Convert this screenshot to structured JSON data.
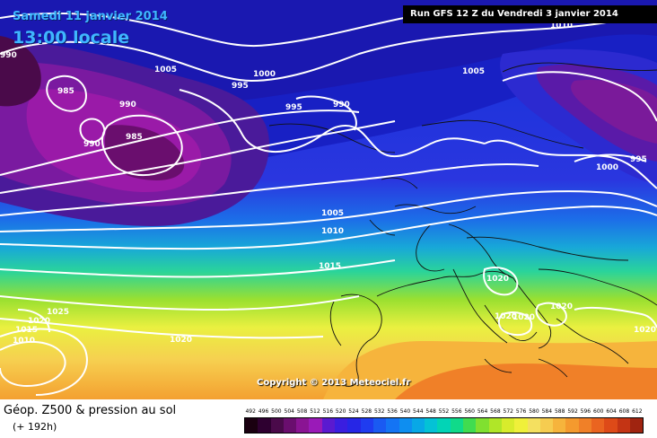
{
  "header": {
    "date": "Samedi 11 janvier 2014",
    "time": "13:00 locale",
    "run": "Run GFS 12 Z du Vendredi 3 janvier 2014"
  },
  "map": {
    "copyright": "Copyright © 2013 Meteociel.fr",
    "isobar_labels": [
      {
        "id": "l990-nw",
        "text": "990"
      },
      {
        "id": "l985-a",
        "text": "985"
      },
      {
        "id": "l1005-a",
        "text": "1005"
      },
      {
        "id": "l1000-a",
        "text": "1000"
      },
      {
        "id": "l995-a",
        "text": "995"
      },
      {
        "id": "l995-b",
        "text": "995"
      },
      {
        "id": "l990-b",
        "text": "990"
      },
      {
        "id": "l990-c",
        "text": "990"
      },
      {
        "id": "l985-b",
        "text": "985"
      },
      {
        "id": "l990-d",
        "text": "990"
      },
      {
        "id": "l1005-b",
        "text": "1005"
      },
      {
        "id": "l1010-top",
        "text": "1010"
      },
      {
        "id": "l995-c",
        "text": "995"
      },
      {
        "id": "l1000-b",
        "text": "1000"
      },
      {
        "id": "l1005-c",
        "text": "1005"
      },
      {
        "id": "l1010-a",
        "text": "1010"
      },
      {
        "id": "l1015-a",
        "text": "1015"
      },
      {
        "id": "l1025",
        "text": "1025"
      },
      {
        "id": "l1020-a",
        "text": "1020"
      },
      {
        "id": "l1015-b",
        "text": "1015"
      },
      {
        "id": "l1010-b",
        "text": "1010"
      },
      {
        "id": "l1020-b",
        "text": "1020"
      },
      {
        "id": "l1020-c",
        "text": "1020"
      },
      {
        "id": "l1020-d",
        "text": "1020"
      },
      {
        "id": "l1020-e",
        "text": "1020"
      },
      {
        "id": "l1020-f",
        "text": "1020"
      },
      {
        "id": "l1020-g",
        "text": "1020"
      }
    ]
  },
  "legend": {
    "field_title": "Géop. Z500 & pression au sol",
    "lead_time": "(+ 192h)",
    "scale_values": [
      "492",
      "496",
      "500",
      "504",
      "508",
      "512",
      "516",
      "520",
      "524",
      "528",
      "532",
      "536",
      "540",
      "544",
      "548",
      "552",
      "556",
      "560",
      "564",
      "568",
      "572",
      "576",
      "580",
      "584",
      "588",
      "592",
      "596",
      "600",
      "604",
      "608",
      "612"
    ],
    "scale_colors": [
      "#1a0010",
      "#2e0030",
      "#4a0a4a",
      "#6a0e6e",
      "#8a1493",
      "#9a1ab8",
      "#5a1ad0",
      "#3a1ee0",
      "#2626e6",
      "#1f3cf0",
      "#1a5af2",
      "#1474f4",
      "#0e8ef0",
      "#08a8e6",
      "#04c2d6",
      "#02d4b6",
      "#10da8a",
      "#40dc50",
      "#80e030",
      "#b0e628",
      "#d8ec2c",
      "#f0f03a",
      "#f4e060",
      "#f6cc50",
      "#f6b43c",
      "#f49a2e",
      "#f08028",
      "#ea6420",
      "#de4a18",
      "#c43414",
      "#a02410"
    ]
  }
}
